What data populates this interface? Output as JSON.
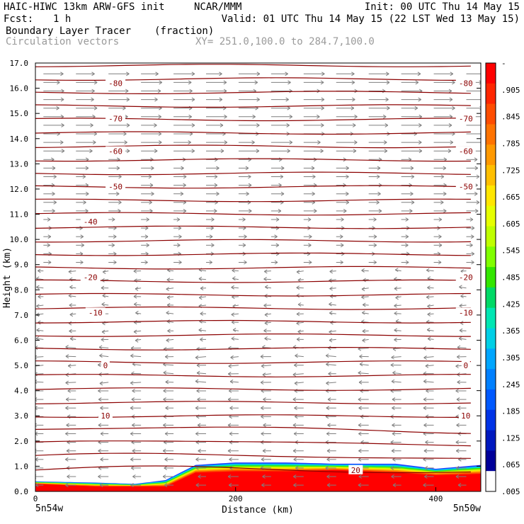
{
  "header": {
    "model_line": "HAIC-HIWC 13km ARW-GFS init",
    "center": "NCAR/MMM",
    "init": "Init: 00 UTC Thu 14 May 15",
    "fcst_label": "Fcst:",
    "fcst_value": "1 h",
    "valid": "Valid: 01 UTC Thu 14 May 15 (22 LST Wed 13 May 15)",
    "field_name": "Boundary Layer Tracer",
    "field_units": "(fraction)",
    "overlay_name": "Circulation vectors",
    "xsec_coords": "XY= 251.0,100.0 to 284.7,100.0"
  },
  "chart_data": {
    "type": "heatmap",
    "xlabel": "Distance (km)",
    "ylabel": "Height (km)",
    "xlim": [
      0,
      445
    ],
    "ylim": [
      0,
      17
    ],
    "x_ticks": [
      0,
      200,
      400
    ],
    "y_ticks": [
      "0.0",
      "1.0",
      "2.0",
      "3.0",
      "4.0",
      "5.0",
      "6.0",
      "7.0",
      "8.0",
      "9.0",
      "10.0",
      "11.0",
      "12.0",
      "13.0",
      "14.0",
      "15.0",
      "16.0",
      "17.0"
    ],
    "x_endpoints": {
      "left": "5n54w",
      "right": "5n50w"
    },
    "colorbar_labels": [
      "-",
      ".905",
      ".845",
      ".785",
      ".725",
      ".665",
      ".605",
      ".545",
      ".485",
      ".425",
      ".365",
      ".305",
      ".245",
      ".185",
      ".125",
      ".065",
      ".005"
    ],
    "colorbar_colors": [
      "#ff0000",
      "#ff2600",
      "#ff4d00",
      "#ff7300",
      "#ff9900",
      "#ffbf00",
      "#ffe600",
      "#e6ff00",
      "#bfff00",
      "#80ff00",
      "#33e600",
      "#00d966",
      "#00e6b3",
      "#00cfe6",
      "#00a6ff",
      "#0080ff",
      "#0059ff",
      "#0033e6",
      "#0019bf",
      "#000099",
      "#ffffff"
    ],
    "temperature_contour_labels": [
      {
        "value": "-80",
        "y": 16.2,
        "x": [
          80,
          430
        ]
      },
      {
        "value": "-70",
        "y": 14.8,
        "x": [
          80,
          430
        ]
      },
      {
        "value": "-60",
        "y": 13.5,
        "x": [
          80,
          430
        ]
      },
      {
        "value": "-50",
        "y": 12.1,
        "x": [
          80,
          430
        ]
      },
      {
        "value": "-40",
        "y": 10.7,
        "x": [
          55
        ]
      },
      {
        "value": "-20",
        "y": 8.5,
        "x": [
          55,
          430
        ]
      },
      {
        "value": "-10",
        "y": 7.1,
        "x": [
          60,
          430
        ]
      },
      {
        "value": "0",
        "y": 5.0,
        "x": [
          70,
          430
        ]
      },
      {
        "value": "10",
        "y": 3.0,
        "x": [
          70,
          430
        ]
      },
      {
        "value": "20",
        "y": 0.85,
        "x": [
          320
        ]
      }
    ],
    "tracer_profile": {
      "x": [
        0,
        60,
        100,
        130,
        160,
        200,
        250,
        300,
        360,
        400,
        445
      ],
      "top": [
        0.4,
        0.35,
        0.3,
        0.45,
        1.05,
        1.15,
        1.15,
        1.1,
        1.1,
        0.9,
        1.05
      ],
      "core": [
        0.3,
        0.2,
        0.2,
        0.2,
        0.75,
        0.8,
        0.8,
        0.85,
        0.75,
        0.65,
        0.7
      ]
    },
    "colors": {
      "contour": "#8b0000",
      "vectors": "#7f7f7f",
      "frame": "#000000"
    }
  }
}
